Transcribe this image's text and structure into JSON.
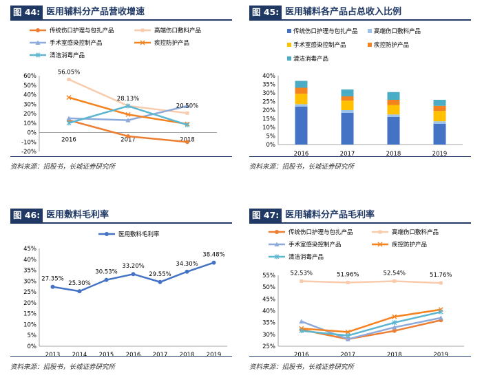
{
  "panels": [
    {
      "fig_label": "图 44:",
      "title": "医用辅料分产品营收增速",
      "source": "资料来源：招股书，长城证券研究所"
    },
    {
      "fig_label": "图 45:",
      "title": "医用辅料各产品占总收入比例",
      "source": "资料来源：招股书，长城证券研究所"
    },
    {
      "fig_label": "图 46:",
      "title": "医用敷料毛利率",
      "source": "资料来源：招股书，长城证券研究所"
    },
    {
      "fig_label": "图 47:",
      "title": "医用辅料分产品毛利率",
      "source": "资料来源：招股书，长城证券研究所"
    }
  ],
  "colors": {
    "wound_care": "#ed7d31",
    "high_end": "#f8cbad",
    "surgery": "#8eaadb",
    "protection": "#f4821f",
    "disinfect": "#5bb6d0",
    "margin_line": "#4472c4",
    "bar_wound": "#4472c4",
    "bar_high": "#9dc3e6",
    "bar_surgery": "#ffc000",
    "bar_protect": "#f4821f",
    "bar_disinfect": "#4bacc6",
    "header": "#1f3864"
  },
  "chart_data": [
    {
      "id": "fig44",
      "type": "line",
      "categories": [
        "2016",
        "2017",
        "2018"
      ],
      "series": [
        {
          "name": "传统伤口护理与包扎产品",
          "values": [
            13,
            -4,
            -10
          ]
        },
        {
          "name": "高端伤口敷料产品",
          "values": [
            56.05,
            28.13,
            20.5
          ]
        },
        {
          "name": "手术室感染控制产品",
          "values": [
            15,
            13,
            28
          ]
        },
        {
          "name": "疾控防护产品",
          "values": [
            37,
            19,
            9
          ]
        },
        {
          "name": "清洁消毒产品",
          "values": [
            10,
            28,
            8
          ]
        }
      ],
      "data_labels": [
        "56.05%",
        "28.13%",
        "20.50%"
      ],
      "ylim": [
        -20,
        60
      ],
      "yticks": [
        "-20%",
        "-10%",
        "0%",
        "10%",
        "20%",
        "30%",
        "40%",
        "50%",
        "60%"
      ],
      "xlabel": "",
      "ylabel": "",
      "legend": "top"
    },
    {
      "id": "fig45",
      "type": "bar",
      "stacked": true,
      "categories": [
        "2016",
        "2017",
        "2018",
        "2019"
      ],
      "series": [
        {
          "name": "传统伤口护理与包扎产品",
          "values": [
            22,
            18.5,
            16,
            12
          ]
        },
        {
          "name": "高端伤口敷料产品",
          "values": [
            1.5,
            1.5,
            1.5,
            1.5
          ]
        },
        {
          "name": "手术室感染控制产品",
          "values": [
            6,
            5.5,
            5.5,
            6
          ]
        },
        {
          "name": "疾控防护产品",
          "values": [
            3.5,
            2.5,
            3,
            3
          ]
        },
        {
          "name": "清洁消毒产品",
          "values": [
            4,
            4,
            4.5,
            3.5
          ]
        }
      ],
      "ylim": [
        0,
        40
      ],
      "yticks": [
        "0%",
        "5%",
        "10%",
        "15%",
        "20%",
        "25%",
        "30%",
        "35%",
        "40%"
      ],
      "legend": "top"
    },
    {
      "id": "fig46",
      "type": "line",
      "categories": [
        "2013",
        "2014",
        "2015",
        "2016",
        "2017",
        "2018",
        "2019"
      ],
      "series": [
        {
          "name": "医用敷料毛利率",
          "values": [
            27.35,
            25.3,
            30.53,
            33.2,
            29.55,
            34.3,
            38.48
          ]
        }
      ],
      "data_labels": [
        "27.35%",
        "25.30%",
        "30.53%",
        "33.20%",
        "29.55%",
        "34.30%",
        "38.48%"
      ],
      "ylim": [
        0,
        45
      ],
      "yticks": [
        "0%",
        "5%",
        "10%",
        "15%",
        "20%",
        "25%",
        "30%",
        "35%",
        "40%",
        "45%"
      ],
      "legend": "top"
    },
    {
      "id": "fig47",
      "type": "line",
      "categories": [
        "2016",
        "2017",
        "2018",
        "2019"
      ],
      "series": [
        {
          "name": "传统伤口护理与包扎产品",
          "values": [
            32,
            28,
            31.5,
            36
          ]
        },
        {
          "name": "高端伤口敷料产品",
          "values": [
            52.53,
            51.96,
            52.54,
            51.76
          ]
        },
        {
          "name": "手术室感染控制产品",
          "values": [
            35.5,
            28,
            33,
            37
          ]
        },
        {
          "name": "疾控防护产品",
          "values": [
            32.5,
            31,
            37.5,
            40.5
          ]
        },
        {
          "name": "清洁消毒产品",
          "values": [
            31.5,
            29.5,
            35,
            39.5
          ]
        }
      ],
      "data_labels": [
        "52.53%",
        "51.96%",
        "52.54%",
        "51.76%"
      ],
      "ylim": [
        25,
        55
      ],
      "yticks": [
        "25%",
        "30%",
        "35%",
        "40%",
        "45%",
        "50%",
        "55%"
      ],
      "legend": "top"
    }
  ]
}
